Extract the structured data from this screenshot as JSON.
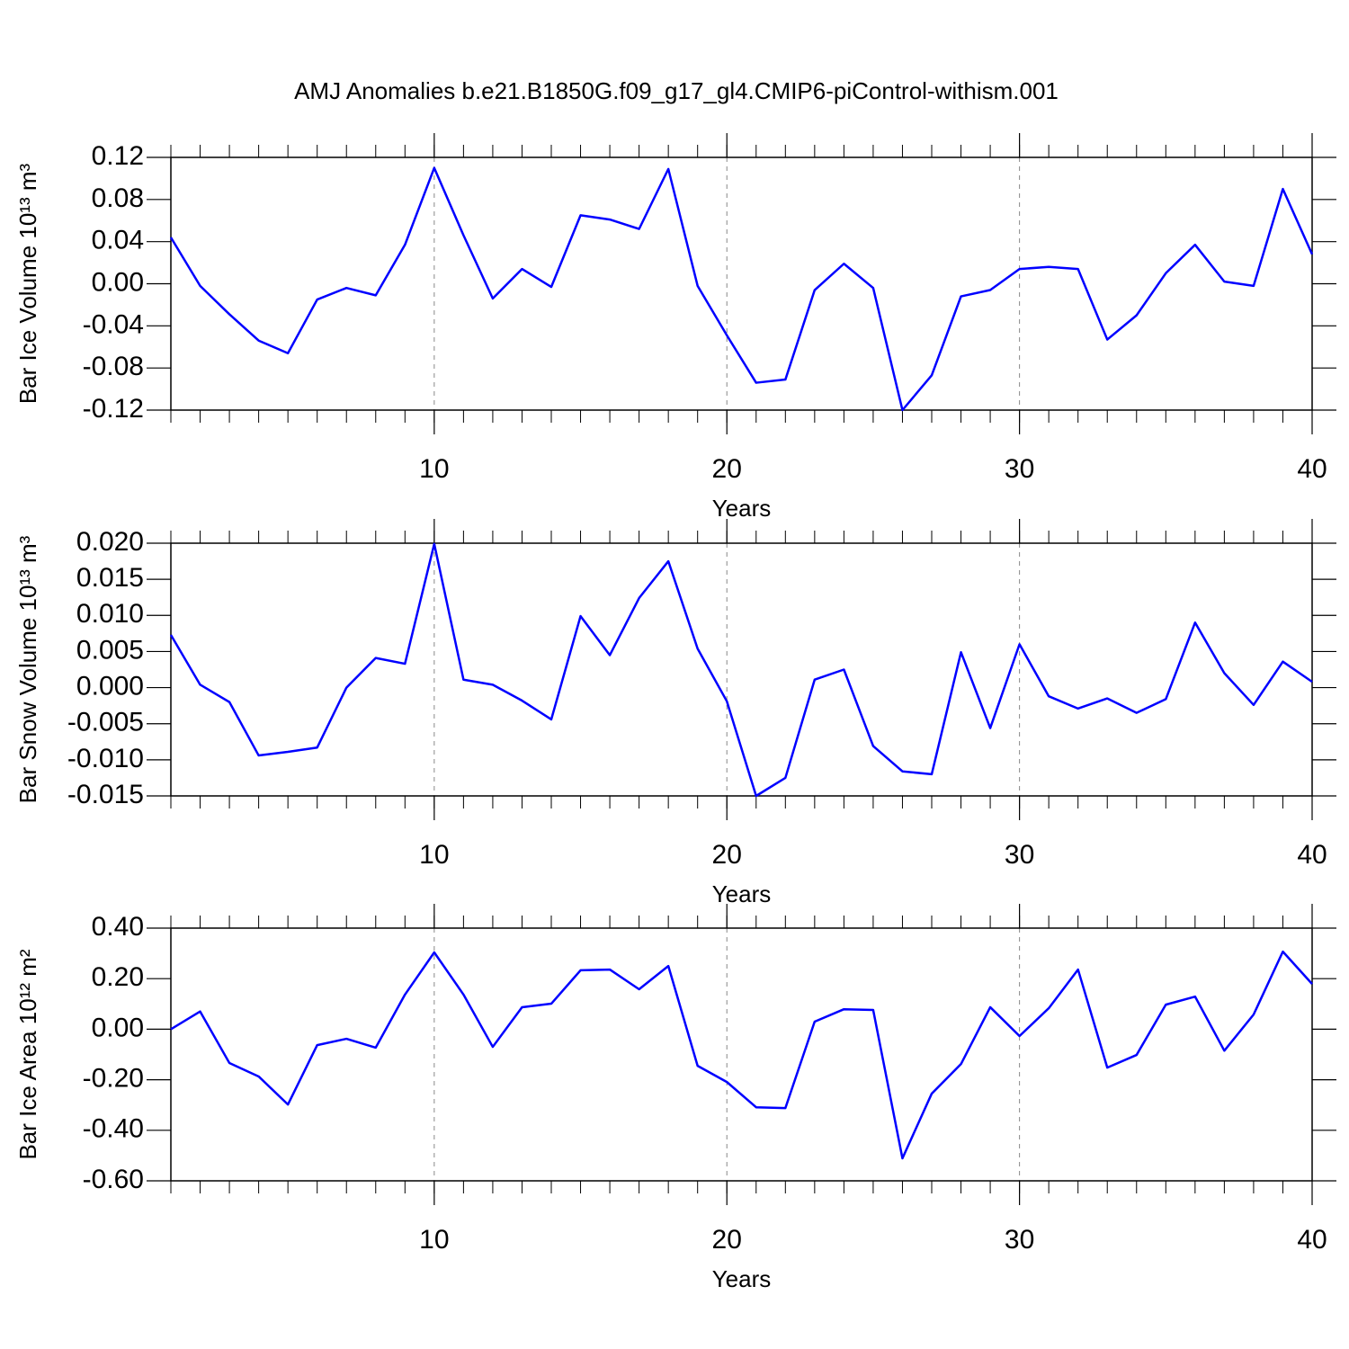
{
  "title": "AMJ Anomalies b.e21.B1850G.f09_g17_gl4.CMIP6-piControl-withism.001",
  "chart_data": [
    {
      "type": "line",
      "ylabel": "Bar Ice Volume 10¹³ m³",
      "xlabel": "Years",
      "color": "#0000ff",
      "grid": true,
      "x": [
        1,
        2,
        3,
        4,
        5,
        6,
        7,
        8,
        9,
        10,
        11,
        12,
        13,
        14,
        15,
        16,
        17,
        18,
        19,
        20,
        21,
        22,
        23,
        24,
        25,
        26,
        27,
        28,
        29,
        30,
        31,
        32,
        33,
        34,
        35,
        36,
        37,
        38,
        39,
        40
      ],
      "values": [
        0.044,
        -0.002,
        -0.029,
        -0.054,
        -0.066,
        -0.015,
        -0.004,
        -0.011,
        0.037,
        0.11,
        0.046,
        -0.014,
        0.014,
        -0.003,
        0.065,
        0.061,
        0.052,
        0.109,
        -0.002,
        -0.049,
        -0.094,
        -0.091,
        -0.006,
        0.019,
        -0.004,
        -0.12,
        -0.087,
        -0.012,
        -0.006,
        0.014,
        0.016,
        0.014,
        -0.053,
        -0.03,
        0.01,
        0.037,
        0.002,
        -0.002,
        0.09,
        0.028
      ],
      "xlim": [
        1,
        40
      ],
      "xticks": [
        10,
        20,
        30,
        40
      ],
      "ylim": [
        -0.12,
        0.12
      ],
      "yticks": [
        0.12,
        0.08,
        0.04,
        {
          "value": 0,
          "label": "0.00"
        },
        -0.04,
        -0.08,
        -0.12
      ]
    },
    {
      "type": "line",
      "ylabel": "Bar Snow Volume 10¹³ m³",
      "xlabel": "Years",
      "color": "#0000ff",
      "grid": true,
      "x": [
        1,
        2,
        3,
        4,
        5,
        6,
        7,
        8,
        9,
        10,
        11,
        12,
        13,
        14,
        15,
        16,
        17,
        18,
        19,
        20,
        21,
        22,
        23,
        24,
        25,
        26,
        27,
        28,
        29,
        30,
        31,
        32,
        33,
        34,
        35,
        36,
        37,
        38,
        39,
        40
      ],
      "values": [
        0.0073,
        0.0004,
        -0.002,
        -0.0094,
        -0.0089,
        -0.0083,
        0.0,
        0.0041,
        0.0033,
        0.0199,
        0.0011,
        0.0004,
        -0.0018,
        -0.0044,
        0.0099,
        0.0045,
        0.0124,
        0.0175,
        0.0054,
        -0.0019,
        -0.015,
        -0.0125,
        0.0011,
        0.0025,
        -0.0081,
        -0.0116,
        -0.012,
        0.0049,
        -0.0056,
        0.006,
        -0.0012,
        -0.0029,
        -0.0015,
        -0.0035,
        -0.0016,
        0.009,
        0.002,
        -0.0024,
        0.0036,
        0.0008
      ],
      "xlim": [
        1,
        40
      ],
      "xticks": [
        10,
        20,
        30,
        40
      ],
      "ylim": [
        -0.015,
        0.02
      ],
      "yticks": [
        {
          "value": 0.02,
          "label": "0.020"
        },
        0.015,
        {
          "value": 0.01,
          "label": "0.010"
        },
        0.005,
        {
          "value": 0,
          "label": "0.000"
        },
        -0.005,
        {
          "value": -0.01,
          "label": "-0.010"
        },
        -0.015
      ]
    },
    {
      "type": "line",
      "ylabel": "Bar Ice Area 10¹² m²",
      "xlabel": "Years",
      "color": "#0000ff",
      "grid": true,
      "x": [
        1,
        2,
        3,
        4,
        5,
        6,
        7,
        8,
        9,
        10,
        11,
        12,
        13,
        14,
        15,
        16,
        17,
        18,
        19,
        20,
        21,
        22,
        23,
        24,
        25,
        26,
        27,
        28,
        29,
        30,
        31,
        32,
        33,
        34,
        35,
        36,
        37,
        38,
        39,
        40
      ],
      "values": [
        0.0,
        0.07,
        -0.134,
        -0.187,
        -0.298,
        -0.063,
        -0.038,
        -0.073,
        0.137,
        0.304,
        0.137,
        -0.07,
        0.087,
        0.101,
        0.233,
        0.236,
        0.158,
        0.25,
        -0.145,
        -0.209,
        -0.309,
        -0.312,
        0.03,
        0.079,
        0.076,
        -0.511,
        -0.255,
        -0.138,
        0.087,
        -0.027,
        0.083,
        0.236,
        -0.152,
        -0.102,
        0.097,
        0.129,
        -0.085,
        0.058,
        0.307,
        0.179
      ],
      "xlim": [
        1,
        40
      ],
      "xticks": [
        10,
        20,
        30,
        40
      ],
      "ylim": [
        -0.6,
        0.4
      ],
      "yticks": [
        {
          "value": 0.4,
          "label": "0.40"
        },
        {
          "value": 0.2,
          "label": "0.20"
        },
        {
          "value": 0,
          "label": "0.00"
        },
        {
          "value": -0.2,
          "label": "-0.20"
        },
        {
          "value": -0.4,
          "label": "-0.40"
        },
        {
          "value": -0.6,
          "label": "-0.60"
        }
      ]
    }
  ]
}
